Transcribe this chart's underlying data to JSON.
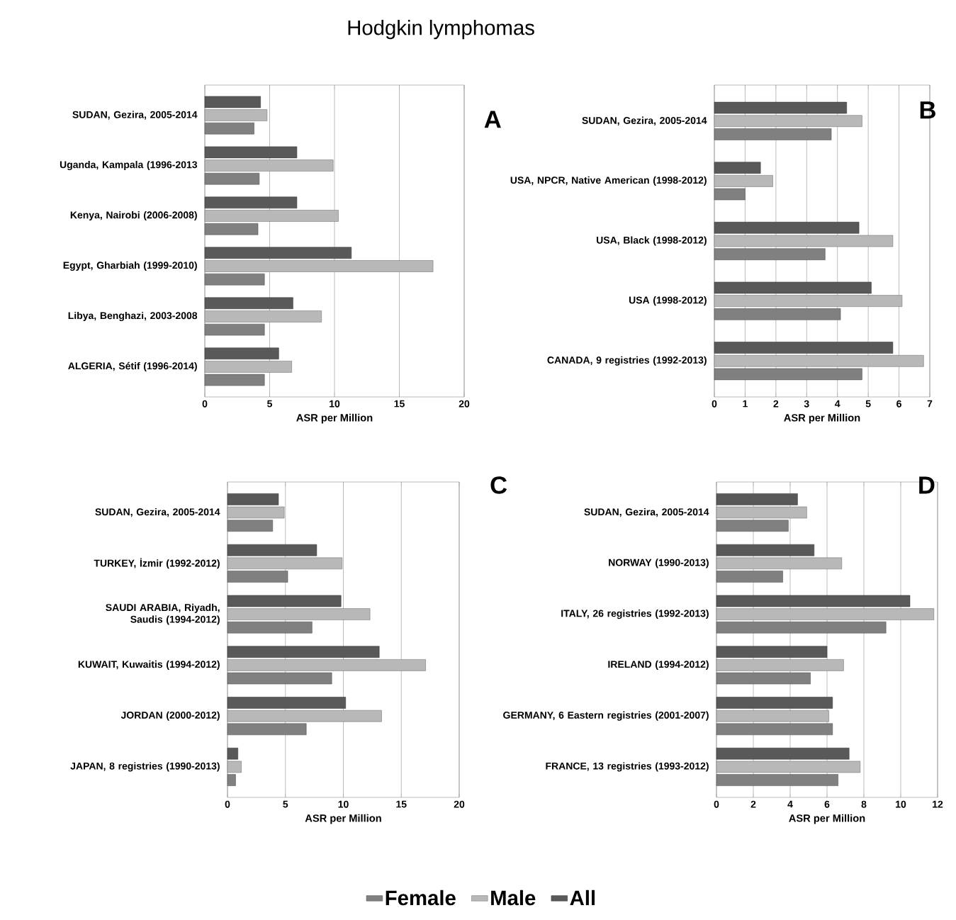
{
  "chart_data": [
    {
      "type": "bar",
      "orientation": "horizontal",
      "title": "Hodgkin lymphomas",
      "annotations": [
        "A"
      ],
      "xlabel": "ASR per Million",
      "grid": "x",
      "xlim": [
        0,
        20
      ],
      "xticks": [
        0,
        5,
        10,
        15,
        20
      ],
      "categories": [
        "SUDAN, Gezira,  2005-2014",
        "Uganda, Kampala (1996-2013",
        "Kenya, Nairobi (2006-2008)",
        "Egypt, Gharbiah (1999-2010)",
        "Libya, Benghazi,  2003-2008",
        "ALGERIA, Sétif (1996-2014)"
      ],
      "series": [
        {
          "color": "#808080",
          "values": [
            3.8,
            4.2,
            4.1,
            4.6,
            4.6,
            4.6
          ]
        },
        {
          "color": "#b8b8b8",
          "values": [
            4.8,
            9.9,
            10.3,
            17.6,
            9.0,
            6.7
          ]
        },
        {
          "color": "#595959",
          "values": [
            4.3,
            7.1,
            7.1,
            11.3,
            6.8,
            5.7
          ]
        }
      ]
    },
    {
      "type": "bar",
      "orientation": "horizontal",
      "annotations": [
        "B"
      ],
      "xlabel": "ASR per Million",
      "grid": "x",
      "xlim": [
        0,
        7
      ],
      "xticks": [
        0,
        1,
        2,
        3,
        4,
        5,
        6,
        7
      ],
      "categories": [
        "SUDAN, Gezira,  2005-2014",
        "USA, NPCR, Native American (1998-2012)",
        "USA, Black (1998-2012)",
        "USA (1998-2012)",
        "CANADA, 9 registries (1992-2013)"
      ],
      "series": [
        {
          "color": "#808080",
          "values": [
            3.8,
            1.0,
            3.6,
            4.1,
            4.8
          ]
        },
        {
          "color": "#b8b8b8",
          "values": [
            4.8,
            1.9,
            5.8,
            6.1,
            6.8
          ]
        },
        {
          "color": "#595959",
          "values": [
            4.3,
            1.5,
            4.7,
            5.1,
            5.8
          ]
        }
      ]
    },
    {
      "type": "bar",
      "orientation": "horizontal",
      "annotations": [
        "C"
      ],
      "xlabel": "ASR per Million",
      "grid": "x",
      "xlim": [
        0,
        20
      ],
      "xticks": [
        0,
        5,
        10,
        15,
        20
      ],
      "categories": [
        "SUDAN, Gezira,  2005-2014",
        "TURKEY, İzmir (1992-2012)",
        "SAUDI ARABIA, Riyadh, Saudis (1994-2012)",
        "KUWAIT, Kuwaitis (1994-2012)",
        "JORDAN (2000-2012)",
        "JAPAN, 8 registries (1990-2013)"
      ],
      "series": [
        {
          "color": "#808080",
          "values": [
            3.9,
            5.2,
            7.3,
            9.0,
            6.8,
            0.7
          ]
        },
        {
          "color": "#b8b8b8",
          "values": [
            4.9,
            9.9,
            12.3,
            17.1,
            13.3,
            1.2
          ]
        },
        {
          "color": "#595959",
          "values": [
            4.4,
            7.7,
            9.8,
            13.1,
            10.2,
            0.9
          ]
        }
      ]
    },
    {
      "type": "bar",
      "orientation": "horizontal",
      "annotations": [
        "D"
      ],
      "xlabel": "ASR per Million",
      "grid": "x",
      "legend": "bottom",
      "xlim": [
        0,
        12
      ],
      "xticks": [
        0,
        2,
        4,
        6,
        8,
        10,
        12
      ],
      "categories": [
        "SUDAN, Gezira,  2005-2014",
        "NORWAY (1990-2013)",
        "ITALY, 26 registries (1992-2013)",
        "IRELAND (1994-2012)",
        "GERMANY, 6 Eastern registries (2001-2007)",
        "FRANCE, 13 registries (1993-2012)"
      ],
      "series": [
        {
          "name": "Female",
          "color": "#808080",
          "values": [
            3.9,
            3.6,
            9.2,
            5.1,
            6.3,
            6.6
          ]
        },
        {
          "name": "Male",
          "color": "#b8b8b8",
          "values": [
            4.9,
            6.8,
            11.8,
            6.9,
            6.1,
            7.8
          ]
        },
        {
          "name": "All",
          "color": "#595959",
          "values": [
            4.4,
            5.3,
            10.5,
            6.0,
            6.3,
            7.2
          ]
        }
      ]
    }
  ]
}
